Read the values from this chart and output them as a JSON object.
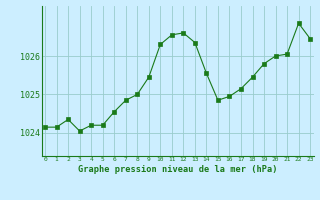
{
  "x": [
    0,
    1,
    2,
    3,
    4,
    5,
    6,
    7,
    8,
    9,
    10,
    11,
    12,
    13,
    14,
    15,
    16,
    17,
    18,
    19,
    20,
    21,
    22,
    23
  ],
  "y": [
    1024.15,
    1024.15,
    1024.35,
    1024.05,
    1024.2,
    1024.2,
    1024.55,
    1024.85,
    1025.0,
    1025.45,
    1026.3,
    1026.55,
    1026.6,
    1026.35,
    1025.55,
    1024.85,
    1024.95,
    1025.15,
    1025.45,
    1025.8,
    1026.0,
    1026.05,
    1026.85,
    1026.45
  ],
  "line_color": "#1a7a1a",
  "marker_color": "#1a7a1a",
  "bg_color": "#cceeff",
  "grid_color": "#99cccc",
  "bottom_bar_color": "#2d6b2d",
  "ylabel_ticks": [
    1024,
    1025,
    1026
  ],
  "xtick_labels": [
    "0",
    "1",
    "2",
    "3",
    "4",
    "5",
    "6",
    "7",
    "8",
    "9",
    "10",
    "11",
    "12",
    "13",
    "14",
    "15",
    "16",
    "17",
    "18",
    "19",
    "20",
    "21",
    "22",
    "23"
  ],
  "xlabel": "Graphe pression niveau de la mer (hPa)",
  "ylim": [
    1023.4,
    1027.3
  ],
  "xlim": [
    -0.3,
    23.3
  ]
}
